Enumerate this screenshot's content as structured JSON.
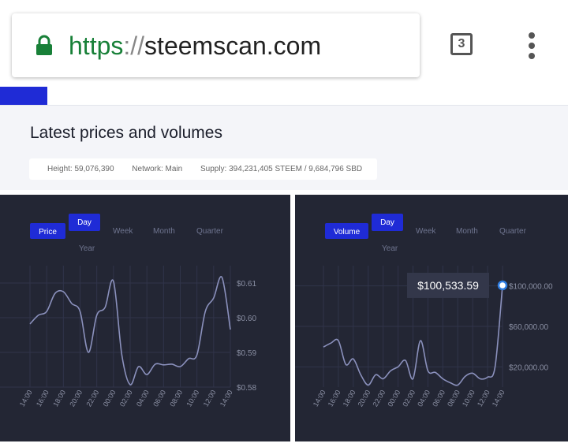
{
  "browser": {
    "url_scheme": "https",
    "url_separator": "://",
    "url_host": "steemscan.com",
    "tab_count": "3"
  },
  "header": {
    "title": "Latest prices and volumes"
  },
  "stats": {
    "height": "Height: 59,076,390",
    "network": "Network: Main",
    "supply": "Supply: 394,231,405 STEEM / 9,684,796 SBD"
  },
  "chart_data": [
    {
      "type": "line",
      "metric_button": "Price",
      "range_buttons": [
        "Day",
        "Week",
        "Month",
        "Quarter",
        "Year"
      ],
      "categories": [
        "14:00",
        null,
        "16:00",
        null,
        "18:00",
        null,
        "20:00",
        null,
        "22:00",
        null,
        "00:00",
        null,
        "02:00",
        null,
        "04:00",
        null,
        "06:00",
        null,
        "08:00",
        null,
        "10:00",
        null,
        "12:00",
        null,
        "14:00"
      ],
      "series": [
        {
          "color": "#8b91bd",
          "values": [
            0.5982,
            0.6007,
            0.6018,
            0.607,
            0.6075,
            0.6041,
            0.6018,
            0.59,
            0.6007,
            0.603,
            0.6105,
            0.5893,
            0.5807,
            0.5859,
            0.5836,
            0.5866,
            0.5864,
            0.5866,
            0.5859,
            0.5882,
            0.5893,
            0.6018,
            0.6057,
            0.6116,
            0.5966
          ]
        }
      ],
      "ylim": [
        0.58,
        0.615
      ],
      "yticks": [
        {
          "value": 0.58,
          "label": "$0.58"
        },
        {
          "value": 0.59,
          "label": "$0.59"
        },
        {
          "value": 0.6,
          "label": "$0.60"
        },
        {
          "value": 0.61,
          "label": "$0.61"
        }
      ],
      "grid": true
    },
    {
      "type": "line",
      "metric_button": "Volume",
      "range_buttons": [
        "Day",
        "Week",
        "Month",
        "Quarter",
        "Year"
      ],
      "categories": [
        "14:00",
        null,
        "16:00",
        null,
        "18:00",
        null,
        "20:00",
        null,
        "22:00",
        null,
        "00:00",
        null,
        "02:00",
        null,
        "04:00",
        null,
        "06:00",
        null,
        "08:00",
        null,
        "10:00",
        null,
        "12:00",
        null,
        "14:00"
      ],
      "series": [
        {
          "color": "#8b91bd",
          "values": [
            39600,
            43500,
            45900,
            22350,
            27800,
            12200,
            2000,
            12200,
            8200,
            16100,
            20000,
            26300,
            8200,
            45900,
            16100,
            14500,
            8200,
            4300,
            2000,
            10600,
            13700,
            8200,
            9800,
            20000,
            100533.59
          ]
        }
      ],
      "tooltip": "$100,533.59",
      "ylim": [
        0,
        120000
      ],
      "yticks": [
        {
          "value": 20000,
          "label": "$20,000.00"
        },
        {
          "value": 60000,
          "label": "$60,000.00"
        },
        {
          "value": 100000,
          "label": "$100,000.00"
        }
      ],
      "grid": true
    }
  ]
}
